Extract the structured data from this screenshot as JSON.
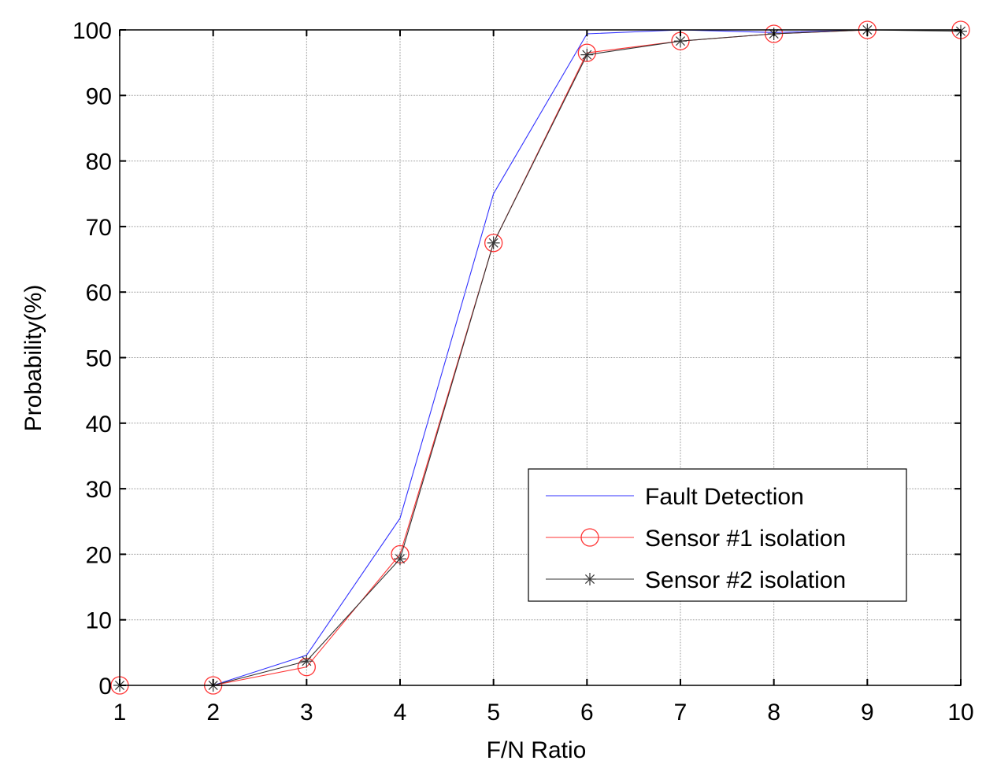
{
  "chart_data": {
    "type": "line",
    "xlabel": "F/N Ratio",
    "ylabel": "Probability(%)",
    "xlim": [
      1,
      10
    ],
    "ylim": [
      0,
      100
    ],
    "xticks": [
      1,
      2,
      3,
      4,
      5,
      6,
      7,
      8,
      9,
      10
    ],
    "yticks": [
      0,
      10,
      20,
      30,
      40,
      50,
      60,
      70,
      80,
      90,
      100
    ],
    "grid": true,
    "legend_position": "lower-right",
    "x": [
      1,
      2,
      3,
      4,
      5,
      6,
      7,
      8,
      9,
      10
    ],
    "series": [
      {
        "name": "Fault Detection",
        "color": "#3333ff",
        "marker": "none",
        "values": [
          0,
          0,
          4.6,
          25.5,
          75,
          99.4,
          100,
          99.6,
          100,
          100
        ]
      },
      {
        "name": "Sensor #1 isolation",
        "color": "#ff3333",
        "marker": "circle",
        "values": [
          0,
          0,
          2.8,
          20,
          67.5,
          96.5,
          98.3,
          99.4,
          100,
          100
        ]
      },
      {
        "name": "Sensor #2 isolation",
        "color": "#333333",
        "marker": "star",
        "values": [
          0,
          0,
          3.7,
          19.3,
          67.5,
          96.2,
          98.3,
          99.4,
          100,
          99.8
        ]
      }
    ]
  }
}
